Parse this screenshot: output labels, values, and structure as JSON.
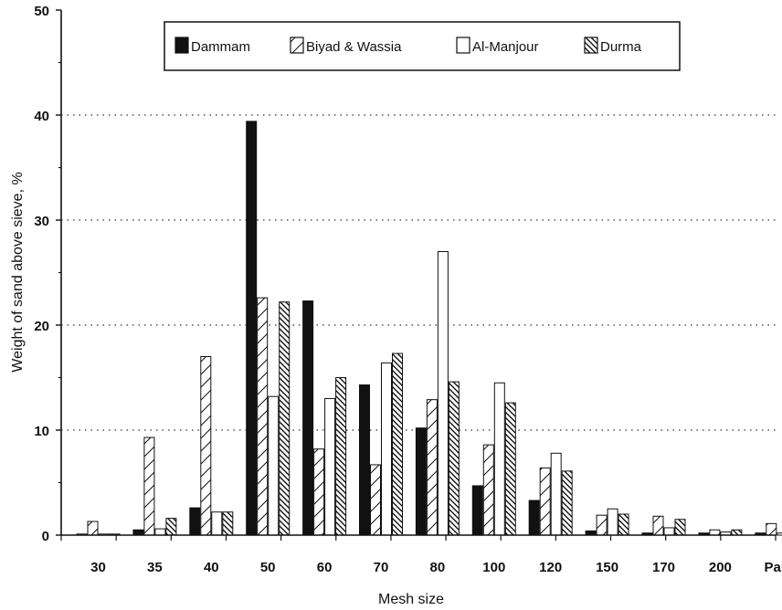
{
  "chart_data": {
    "type": "bar",
    "xlabel": "Mesh size",
    "ylabel": "Weight of sand above sieve, %",
    "ylim": [
      0,
      50
    ],
    "yticks": [
      "0",
      "10",
      "20",
      "30",
      "40",
      "50"
    ],
    "grid": "horizontal dotted at 10, 20, 30, 40",
    "legend_position": "top",
    "categories": [
      "30",
      "35",
      "40",
      "50",
      "60",
      "70",
      "80",
      "100",
      "120",
      "150",
      "170",
      "200",
      "Pan"
    ],
    "series": [
      {
        "name": "Dammam",
        "pattern": "solid",
        "color": "#111111",
        "values": [
          0.1,
          0.5,
          2.6,
          39.4,
          22.3,
          14.3,
          10.2,
          4.7,
          3.3,
          0.4,
          0.2,
          0.2,
          0.2
        ]
      },
      {
        "name": "Biyad & Wassia",
        "pattern": "hatch-forward",
        "values": [
          1.3,
          9.3,
          17.0,
          22.6,
          8.2,
          6.7,
          12.9,
          8.6,
          6.4,
          1.9,
          1.8,
          0.5,
          1.1
        ]
      },
      {
        "name": "Al-Manjour",
        "pattern": "open",
        "values": [
          0.1,
          0.6,
          2.2,
          13.2,
          13.0,
          16.4,
          27.0,
          14.5,
          7.8,
          2.5,
          0.7,
          0.3,
          0.2
        ]
      },
      {
        "name": "Durma",
        "pattern": "hatch-back",
        "values": [
          0.1,
          1.6,
          2.2,
          22.2,
          15.0,
          17.3,
          14.6,
          12.6,
          6.1,
          2.0,
          1.5,
          0.5,
          0.4
        ]
      }
    ]
  }
}
